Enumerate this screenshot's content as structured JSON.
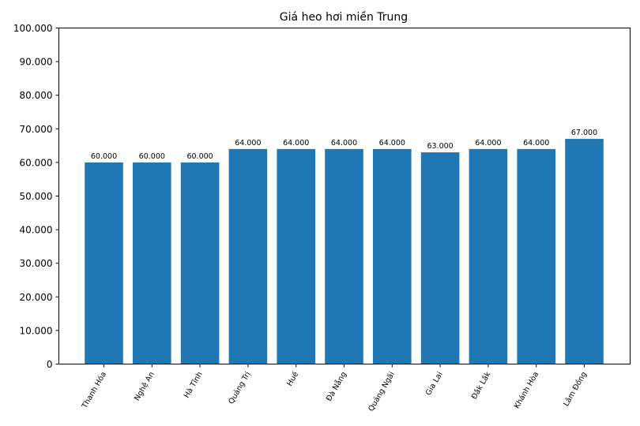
{
  "chart_data": {
    "type": "bar",
    "title": "Giá heo hơi miền Trung",
    "xlabel": "",
    "ylabel": "",
    "categories": [
      "Thanh Hóa",
      "Nghệ An",
      "Hà Tĩnh",
      "Quảng Trị",
      "Huế",
      "Đà Nẵng",
      "Quảng Ngãi",
      "Gia Lai",
      "Đắk Lắk",
      "Khánh Hòa",
      "Lâm Đồng"
    ],
    "values": [
      60000,
      60000,
      60000,
      64000,
      64000,
      64000,
      64000,
      63000,
      64000,
      64000,
      67000
    ],
    "value_labels": [
      "60.000",
      "60.000",
      "60.000",
      "64.000",
      "64.000",
      "64.000",
      "64.000",
      "63.000",
      "64.000",
      "64.000",
      "67.000"
    ],
    "ylim": [
      0,
      100000
    ],
    "yticks": [
      0,
      10000,
      20000,
      30000,
      40000,
      50000,
      60000,
      70000,
      80000,
      90000,
      100000
    ],
    "ytick_labels": [
      "0",
      "10.000",
      "20.000",
      "30.000",
      "40.000",
      "50.000",
      "60.000",
      "70.000",
      "80.000",
      "90.000",
      "100.000"
    ],
    "grid": false,
    "legend": null,
    "bar_color": "#1f77b4",
    "xtick_rotation": -60
  }
}
